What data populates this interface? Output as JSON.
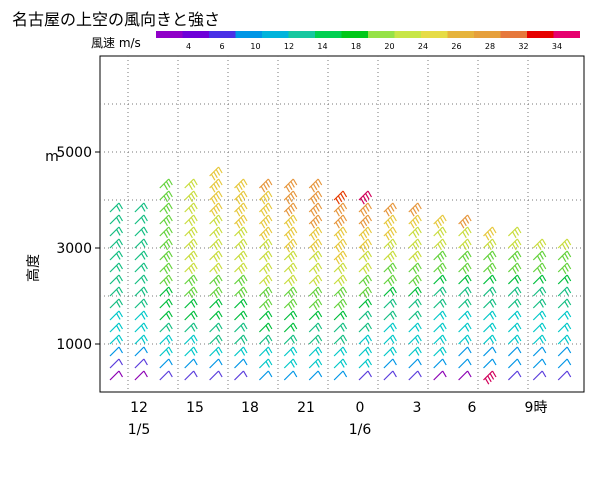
{
  "title": "名古屋の上空の風向きと強さ",
  "legend": {
    "label": "風速 m/s",
    "colors": [
      "#9000c8",
      "#6e00d8",
      "#4a30e6",
      "#0096e6",
      "#00b4dc",
      "#16c8a0",
      "#00d050",
      "#00c818",
      "#96e246",
      "#c8e646",
      "#e6dc46",
      "#e6b43c",
      "#e6a03c",
      "#e6783c",
      "#e60000",
      "#e6006e"
    ],
    "tick_labels": [
      "4",
      "6",
      "10",
      "12",
      "14",
      "18",
      "20",
      "24",
      "26",
      "28",
      "32",
      "34"
    ]
  },
  "chart_data": {
    "type": "wind barb time-height",
    "title": "名古屋の上空の風向きと強さ",
    "ylabel": "高度",
    "yunit": "m",
    "ylim": [
      0,
      7000
    ],
    "yticks": [
      1000,
      3000,
      5000
    ],
    "grid": true,
    "x_tick_labels": [
      "12",
      "15",
      "18",
      "21",
      "0",
      "3",
      "6",
      "9時"
    ],
    "date_labels": [
      "1/5",
      "1/6"
    ],
    "time_steps": 19,
    "heights": [
      250,
      500,
      750,
      1000,
      1250,
      1500,
      1750,
      2000,
      2250,
      2500,
      2750,
      3000,
      3250,
      3500,
      3750,
      4000,
      4250,
      4500
    ],
    "top_heights_by_time": [
      3750,
      3750,
      4250,
      4250,
      4500,
      4250,
      4250,
      4250,
      4250,
      4000,
      4000,
      3750,
      3750,
      3500,
      3500,
      3250,
      3250,
      3000,
      3000
    ],
    "wind_speed_ms_by_time": [
      [
        4,
        6,
        10,
        12,
        12,
        12,
        14,
        14,
        14,
        14,
        14,
        14,
        14,
        14,
        14
      ],
      [
        4,
        6,
        10,
        12,
        12,
        12,
        14,
        14,
        14,
        14,
        14,
        14,
        14,
        14,
        14
      ],
      [
        6,
        10,
        12,
        12,
        14,
        18,
        18,
        18,
        20,
        20,
        20,
        20,
        20,
        20,
        20,
        20,
        20
      ],
      [
        6,
        10,
        12,
        12,
        14,
        18,
        18,
        20,
        20,
        24,
        24,
        24,
        24,
        24,
        24,
        24,
        24
      ],
      [
        6,
        10,
        12,
        14,
        14,
        18,
        18,
        20,
        20,
        24,
        24,
        24,
        24,
        24,
        26,
        26,
        26,
        26
      ],
      [
        6,
        10,
        12,
        14,
        14,
        18,
        18,
        20,
        20,
        24,
        24,
        24,
        24,
        26,
        26,
        26,
        26
      ],
      [
        10,
        12,
        12,
        14,
        18,
        18,
        20,
        20,
        24,
        24,
        24,
        24,
        26,
        26,
        26,
        26,
        28
      ],
      [
        10,
        12,
        12,
        14,
        18,
        18,
        20,
        20,
        24,
        24,
        24,
        26,
        26,
        26,
        28,
        28,
        28
      ],
      [
        10,
        12,
        12,
        14,
        14,
        18,
        20,
        20,
        24,
        24,
        24,
        26,
        26,
        28,
        28,
        28,
        28
      ],
      [
        10,
        12,
        12,
        14,
        14,
        18,
        20,
        20,
        24,
        24,
        26,
        26,
        26,
        28,
        28,
        32
      ],
      [
        6,
        12,
        12,
        12,
        14,
        14,
        18,
        20,
        20,
        24,
        24,
        26,
        26,
        28,
        28,
        34
      ],
      [
        6,
        10,
        12,
        12,
        12,
        14,
        14,
        18,
        20,
        20,
        24,
        24,
        26,
        26,
        28
      ],
      [
        6,
        10,
        12,
        12,
        12,
        14,
        14,
        18,
        20,
        20,
        24,
        24,
        24,
        26,
        28
      ],
      [
        4,
        10,
        12,
        12,
        12,
        12,
        14,
        14,
        18,
        20,
        20,
        24,
        24,
        26
      ],
      [
        4,
        10,
        10,
        12,
        12,
        12,
        14,
        14,
        18,
        20,
        20,
        24,
        24,
        28
      ],
      [
        34,
        10,
        10,
        12,
        12,
        12,
        14,
        14,
        18,
        20,
        20,
        24,
        26
      ],
      [
        6,
        10,
        10,
        12,
        12,
        12,
        14,
        14,
        18,
        20,
        20,
        24,
        24
      ],
      [
        6,
        10,
        10,
        12,
        12,
        12,
        14,
        14,
        18,
        20,
        20,
        24
      ],
      [
        6,
        10,
        10,
        12,
        12,
        12,
        14,
        14,
        18,
        20,
        20,
        24
      ]
    ]
  }
}
